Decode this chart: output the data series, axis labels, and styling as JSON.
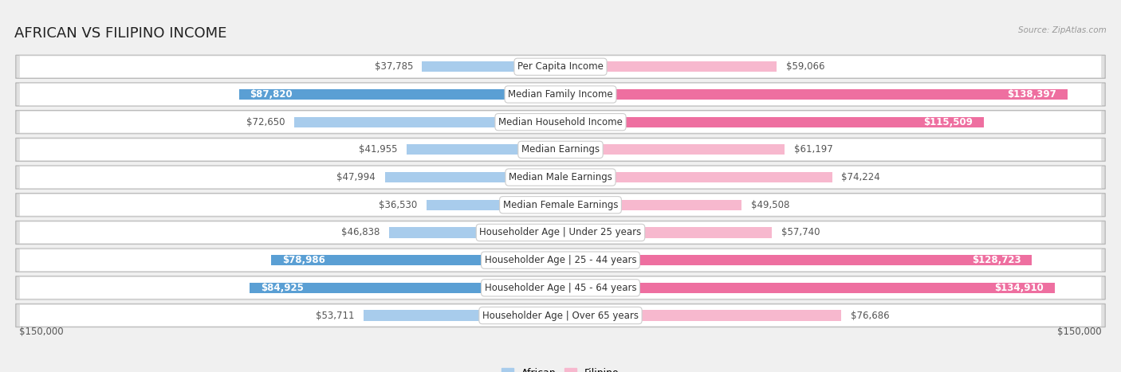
{
  "title": "AFRICAN VS FILIPINO INCOME",
  "source": "Source: ZipAtlas.com",
  "categories": [
    "Per Capita Income",
    "Median Family Income",
    "Median Household Income",
    "Median Earnings",
    "Median Male Earnings",
    "Median Female Earnings",
    "Householder Age | Under 25 years",
    "Householder Age | 25 - 44 years",
    "Householder Age | 45 - 64 years",
    "Householder Age | Over 65 years"
  ],
  "african_values": [
    37785,
    87820,
    72650,
    41955,
    47994,
    36530,
    46838,
    78986,
    84925,
    53711
  ],
  "filipino_values": [
    59066,
    138397,
    115509,
    61197,
    74224,
    49508,
    57740,
    128723,
    134910,
    76686
  ],
  "african_light_color": "#A8CCEC",
  "african_dark_color": "#5A9FD4",
  "filipino_light_color": "#F7B8CE",
  "filipino_dark_color": "#EE6FA0",
  "dark_threshold": 0.52,
  "max_value": 150000,
  "background_color": "#f0f0f0",
  "row_bg_color": "#ffffff",
  "row_border_color": "#cccccc",
  "title_fontsize": 13,
  "label_fontsize": 8.5,
  "value_fontsize": 8.5,
  "legend_fontsize": 9
}
